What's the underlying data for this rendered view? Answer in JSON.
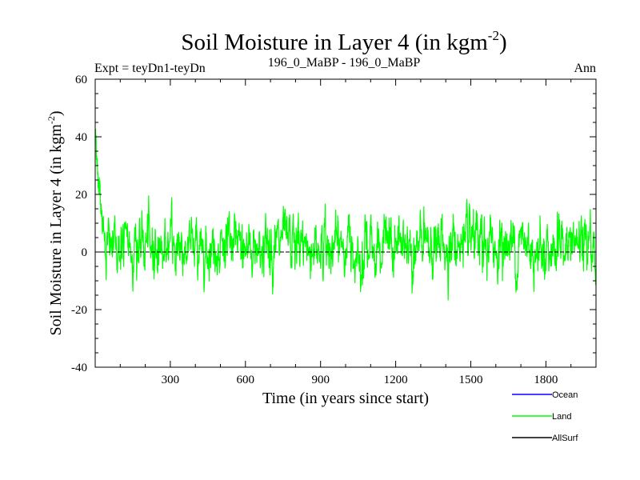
{
  "chart_data": {
    "type": "line",
    "title": "Soil Moisture in Layer 4 (in kgm",
    "title_sup": "-2",
    "title_close": ")",
    "subtitle_left": "Expt = teyDn1-teyDn",
    "subtitle_center": "196_0_MaBP - 196_0_MaBP",
    "subtitle_right": "Ann",
    "xlabel": "Time (in years since start)",
    "ylabel": "Soil Moisture in Layer 4 (in kgm",
    "ylabel_sup": "-2",
    "ylabel_close": ")",
    "xlim": [
      0,
      2000
    ],
    "ylim": [
      -40,
      60
    ],
    "xticks": [
      300,
      600,
      900,
      1200,
      1500,
      1800
    ],
    "yticks": [
      -40,
      -20,
      0,
      20,
      40,
      60
    ],
    "zero_line": 0,
    "n_points": 2000,
    "series": [
      {
        "name": "Ocean",
        "color": "#0000ff",
        "values": []
      },
      {
        "name": "Land",
        "color": "#00ff00",
        "start_value": 40,
        "initial_decay_years": 40,
        "mean": 2,
        "typical_range": [
          -12,
          18
        ],
        "extreme_max": 23,
        "extreme_min": -21
      },
      {
        "name": "AllSurf",
        "color": "#000000",
        "values": []
      }
    ]
  }
}
